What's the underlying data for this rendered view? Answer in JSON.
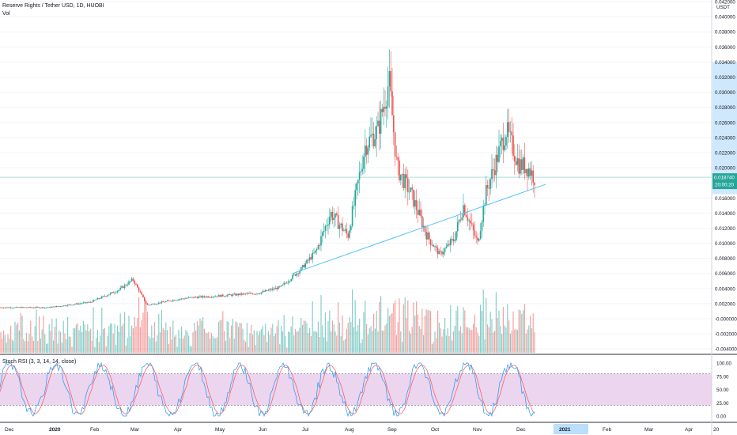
{
  "header": {
    "title": "Reserve Rights / Tether USD, 1D, HUOBI",
    "volume_label": "Vol",
    "rsi_label": "Stoch RSI (3, 3, 14, 14, close)"
  },
  "colors": {
    "up": "#26a69a",
    "down": "#ef5350",
    "rsi_k": "#2196f3",
    "rsi_d": "#ff5252",
    "rsi_band": "#e1bee7",
    "trendline": "#4fc3f7",
    "last_price_bg": "#26a69a",
    "highlight": "#bbdefb"
  },
  "chart_data": [
    {
      "type": "candlestick",
      "title": "Reserve Rights / Tether USD, 1D, HUOBI",
      "unit": "USDT",
      "ylim": [
        -0.0045,
        0.042
      ],
      "y_ticks": [
        "0.042000",
        "0.040000",
        "0.038000",
        "0.036000",
        "0.034000",
        "0.032000",
        "0.030000",
        "0.028000",
        "0.026000",
        "0.024000",
        "0.022000",
        "0.020000",
        "0.018000",
        "0.016000",
        "0.014000",
        "0.012000",
        "0.010000",
        "0.008000",
        "0.006000",
        "0.004000",
        "0.002000",
        "-0.000000",
        "-0.002000",
        "-0.004000"
      ],
      "x_ticks": [
        "Dec",
        "2020",
        "Feb",
        "Mar",
        "Apr",
        "May",
        "Jun",
        "Jul",
        "Aug",
        "Sep",
        "Oct",
        "Nov",
        "Dec",
        "2021",
        "Feb",
        "Mar",
        "Apr",
        "20"
      ],
      "price_keypoints": [
        [
          "Dec",
          0.0015
        ],
        [
          "2020",
          0.0015
        ],
        [
          "Feb",
          0.0022
        ],
        [
          "Mar",
          0.0038
        ],
        [
          "Mar",
          0.0052
        ],
        [
          "Mar",
          0.0018
        ],
        [
          "Apr",
          0.0025
        ],
        [
          "Apr",
          0.0028
        ],
        [
          "May",
          0.003
        ],
        [
          "Jun",
          0.0034
        ],
        [
          "Jun",
          0.0042
        ],
        [
          "Jul",
          0.0065
        ],
        [
          "Jul",
          0.009
        ],
        [
          "Jul",
          0.014
        ],
        [
          "Aug",
          0.011
        ],
        [
          "Aug",
          0.023
        ],
        [
          "Aug",
          0.025
        ],
        [
          "Sep",
          0.0315
        ],
        [
          "Sep",
          0.02
        ],
        [
          "Sep",
          0.0165
        ],
        [
          "Oct",
          0.011
        ],
        [
          "Oct",
          0.0085
        ],
        [
          "Oct",
          0.0105
        ],
        [
          "Oct",
          0.015
        ],
        [
          "Nov",
          0.01
        ],
        [
          "Nov",
          0.0165
        ],
        [
          "Nov",
          0.025
        ],
        [
          "Dec",
          0.0205
        ],
        [
          "Dec",
          0.02
        ],
        [
          "Dec",
          0.0187
        ]
      ],
      "last_price": "0.018740",
      "countdown": "20:00:20",
      "trendline_label": ""
    },
    {
      "type": "stochastic_rsi",
      "title": "Stoch RSI (3, 3, 14, 14, close)",
      "ylim": [
        0,
        100
      ],
      "y_ticks": [
        "100.00",
        "75.00",
        "50.00",
        "25.00",
        "0.00"
      ],
      "bands": [
        20,
        80
      ]
    }
  ]
}
